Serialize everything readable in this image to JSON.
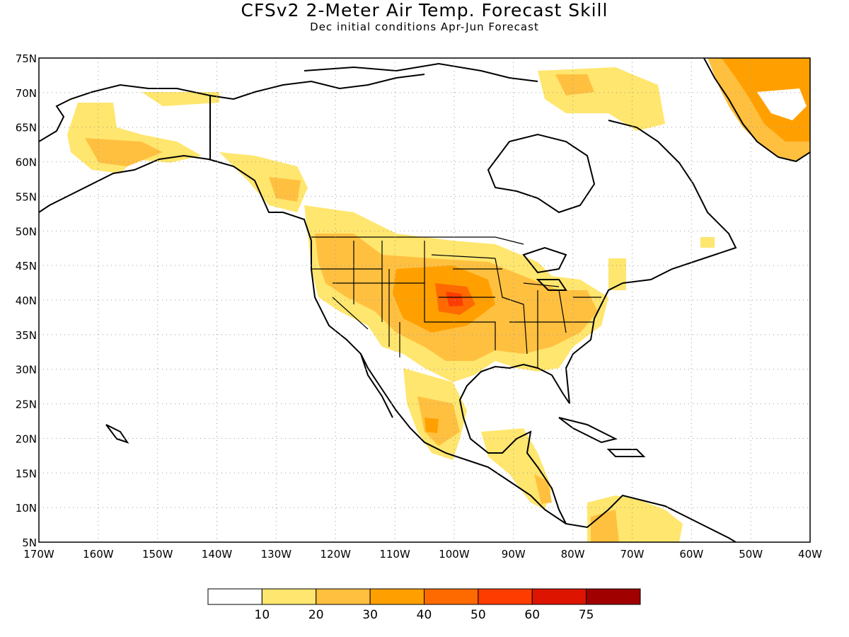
{
  "title": "CFSv2 2-Meter Air Temp. Forecast Skill",
  "subtitle": "Dec initial conditions  Apr-Jun Forecast",
  "map": {
    "lon_range": [
      -170,
      -40
    ],
    "lat_range": [
      5,
      75
    ],
    "lon_ticks": [
      "170W",
      "160W",
      "150W",
      "140W",
      "130W",
      "120W",
      "110W",
      "100W",
      "90W",
      "80W",
      "70W",
      "60W",
      "50W",
      "40W"
    ],
    "lat_ticks": [
      "5N",
      "10N",
      "15N",
      "20N",
      "25N",
      "30N",
      "35N",
      "40N",
      "45N",
      "50N",
      "55N",
      "60N",
      "65N",
      "70N",
      "75N"
    ],
    "grid": "dotted"
  },
  "colorbar": {
    "labels": [
      "10",
      "20",
      "30",
      "40",
      "50",
      "60",
      "75"
    ],
    "colors": [
      "#ffffff",
      "#ffe66e",
      "#ffc040",
      "#ffa000",
      "#ff6a00",
      "#ff3c00",
      "#dc1400",
      "#a00000"
    ]
  },
  "skill_regions": [
    {
      "level": 1,
      "lon": -124,
      "lat": 46
    },
    {
      "level": 2,
      "lon": -100,
      "lat": 40
    },
    {
      "level": 3,
      "lon": -100,
      "lat": 40
    },
    {
      "level": 1,
      "lon": -95,
      "lat": 35
    },
    {
      "level": 2,
      "lon": -102,
      "lat": 22
    },
    {
      "level": 1,
      "lon": -155,
      "lat": 63
    },
    {
      "level": 1,
      "lon": -130,
      "lat": 56
    },
    {
      "level": 2,
      "lon": -45,
      "lat": 70
    },
    {
      "level": 1,
      "lon": -82,
      "lat": 70
    },
    {
      "level": 1,
      "lon": -72,
      "lat": 8
    }
  ]
}
